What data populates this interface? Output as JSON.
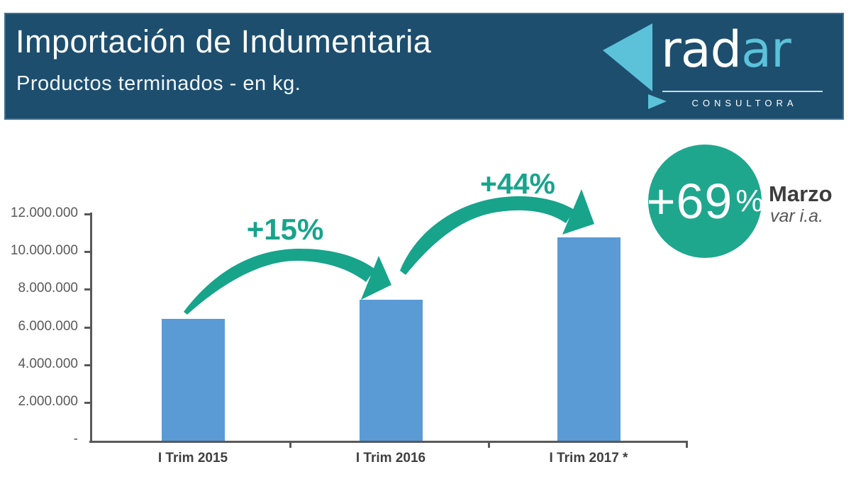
{
  "header": {
    "title": "Importación de Indumentaria",
    "subtitle": "Productos terminados - en kg.",
    "logo": {
      "brand_first": "rad",
      "brand_second": "ar",
      "tagline": "CONSULTORA"
    }
  },
  "chart_data": {
    "type": "bar",
    "title": "Importación de Indumentaria - Productos terminados - en kg.",
    "categories": [
      "I Trim 2015",
      "I Trim 2016",
      "I Trim 2017 *"
    ],
    "values": [
      6450000,
      7450000,
      10750000
    ],
    "ylim": [
      0,
      12000000
    ],
    "y_tick_labels": [
      "12.000.000",
      "10.000.000",
      "8.000.000",
      "6.000.000",
      "4.000.000",
      "2.000.000",
      "-"
    ],
    "xlabel": "",
    "ylabel": "",
    "grid": "off",
    "legend": "none",
    "annotations": [
      {
        "label": "+15%",
        "from": "I Trim 2015",
        "to": "I Trim 2016"
      },
      {
        "label": "+44%",
        "from": "I Trim 2016",
        "to": "I Trim 2017 *"
      }
    ],
    "badge": {
      "value": "+69",
      "percent_sign": "%",
      "title": "Marzo",
      "subtitle": "var i.a."
    }
  },
  "colors": {
    "header_navy": "#1d4e6e",
    "logo_light_blue": "#5bc2d9",
    "bar_blue": "#5b9bd5",
    "accent_green": "#1fa78e",
    "axis_gray": "#595959",
    "label_dark_gray": "#3f3f3f"
  }
}
